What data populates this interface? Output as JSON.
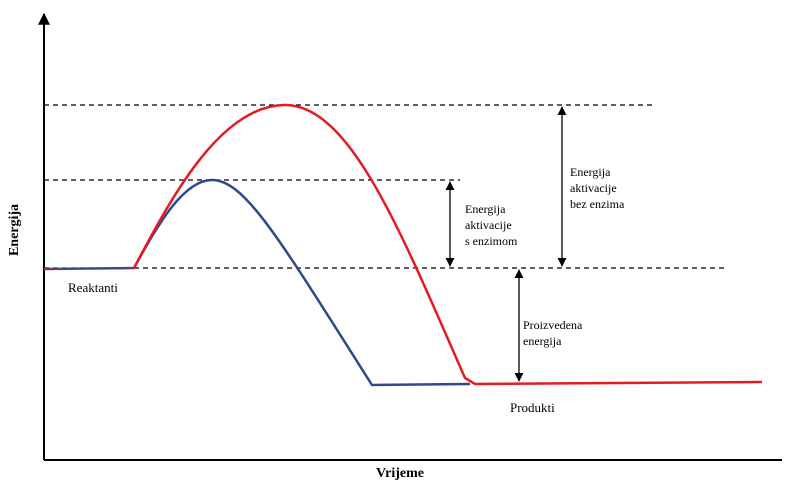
{
  "axes": {
    "y_label": "Energija",
    "x_label": "Vrijeme"
  },
  "labels": {
    "reactants": "Reaktanti",
    "products": "Produkti",
    "activation_with_enzyme": [
      "Energija",
      "aktivacije",
      "s enzimom"
    ],
    "activation_without_enzyme": [
      "Energija",
      "aktivacije",
      "bez enzima"
    ],
    "released_energy": [
      "Proizvedena",
      "energija"
    ]
  }
}
